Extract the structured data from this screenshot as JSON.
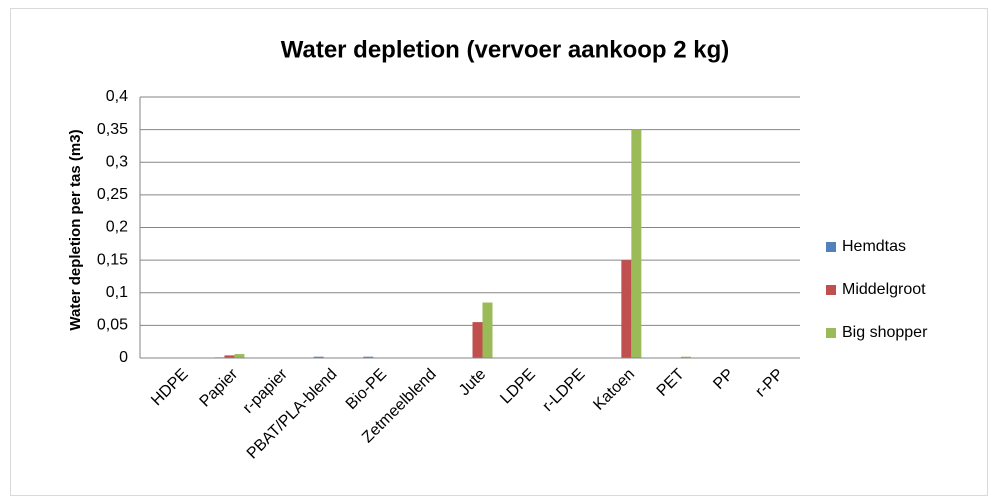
{
  "chart_data": {
    "type": "bar",
    "title": "Water depletion (vervoer aankoop 2 kg)",
    "y_label": "Water depletion per tas (m3)",
    "categories": [
      "HDPE",
      "Papier",
      "r-papier",
      "PBAT/PLA-blend",
      "Bio-PE",
      "Zetmeelblend",
      "Jute",
      "LDPE",
      "r-LDPE",
      "Katoen",
      "PET",
      "PP",
      "r-PP"
    ],
    "series": [
      {
        "name": "Hemdtas",
        "color": "#4f81bd",
        "values": [
          0,
          0.001,
          0,
          0.002,
          0.002,
          0,
          0,
          0,
          0,
          0,
          0,
          0,
          0
        ]
      },
      {
        "name": "Middelgroot",
        "color": "#c0504d",
        "values": [
          0,
          0.004,
          0,
          0,
          0,
          0,
          0.055,
          0,
          0,
          0.15,
          0,
          0,
          0
        ]
      },
      {
        "name": "Big shopper",
        "color": "#9bbb59",
        "values": [
          0,
          0.006,
          0,
          0,
          0,
          0,
          0.085,
          0,
          0,
          0.35,
          0.002,
          0,
          0
        ]
      }
    ],
    "ylim": [
      0,
      0.4
    ],
    "yticks": [
      0,
      {
        "value": 0.05,
        "label": "0,05"
      },
      {
        "value": 0.1,
        "label": "0,1"
      },
      {
        "value": 0.15,
        "label": "0,15"
      },
      {
        "value": 0.2,
        "label": "0,2"
      },
      {
        "value": 0.25,
        "label": "0,25"
      },
      {
        "value": 0.3,
        "label": "0,3"
      },
      {
        "value": 0.35,
        "label": "0,35"
      },
      {
        "value": 0.4,
        "label": "0,4"
      }
    ],
    "grid": true,
    "legend": "right"
  }
}
